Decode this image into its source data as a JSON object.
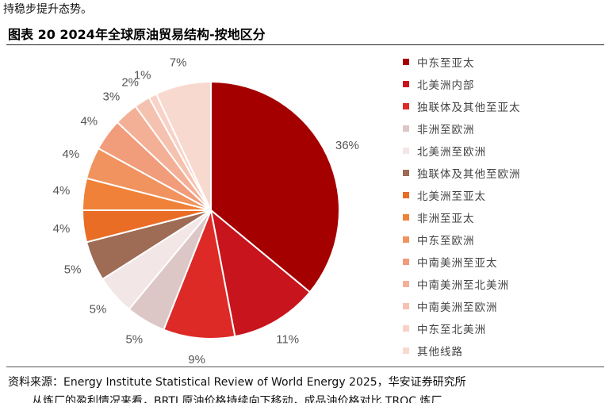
{
  "header_text": "持稳步提升态势。",
  "figure_title": "图表 20 2024年全球原油贸易结构-按地区分",
  "source": "资料来源：Energy Institute Statistical Review of World Energy 2025，华安证券研究所",
  "bottom_text": "从炼厂的盈利情况来看，BRTI 原油价格持续向下移动，成品油价格对比 TROC 炼厂",
  "chart_data": {
    "type": "pie",
    "title": "",
    "slices": [
      {
        "label": "中东至亚太",
        "value": 36,
        "display": "36%",
        "color": "#a50000"
      },
      {
        "label": "北美洲内部",
        "value": 11,
        "display": "11%",
        "color": "#c8141c"
      },
      {
        "label": "独联体及其他至亚太",
        "value": 9,
        "display": "9%",
        "color": "#dd2a27"
      },
      {
        "label": "非洲至欧洲",
        "value": 5,
        "display": "5%",
        "color": "#dcc6c6"
      },
      {
        "label": "北美洲至欧洲",
        "value": 5,
        "display": "5%",
        "color": "#f3e6e6"
      },
      {
        "label": "独联体及其他至欧洲",
        "value": 5,
        "display": "5%",
        "color": "#9e6b55"
      },
      {
        "label": "北美洲至亚太",
        "value": 4,
        "display": "4%",
        "color": "#e96d25"
      },
      {
        "label": "非洲至亚太",
        "value": 4,
        "display": "4%",
        "color": "#ef8238"
      },
      {
        "label": "中东至欧洲",
        "value": 4,
        "display": "4%",
        "color": "#f0935e"
      },
      {
        "label": "中南美洲至亚太",
        "value": 4,
        "display": "4%",
        "color": "#f19c7a"
      },
      {
        "label": "中南美洲至北美洲",
        "value": 3,
        "display": "3%",
        "color": "#f4b096"
      },
      {
        "label": "中南美洲至欧洲",
        "value": 2,
        "display": "2%",
        "color": "#f6c2b0"
      },
      {
        "label": "中东至北美洲",
        "value": 1,
        "display": "1%",
        "color": "#f8d2c6"
      },
      {
        "label": "其他线路",
        "value": 7,
        "display": "7%",
        "color": "#f8d9cf"
      }
    ]
  }
}
